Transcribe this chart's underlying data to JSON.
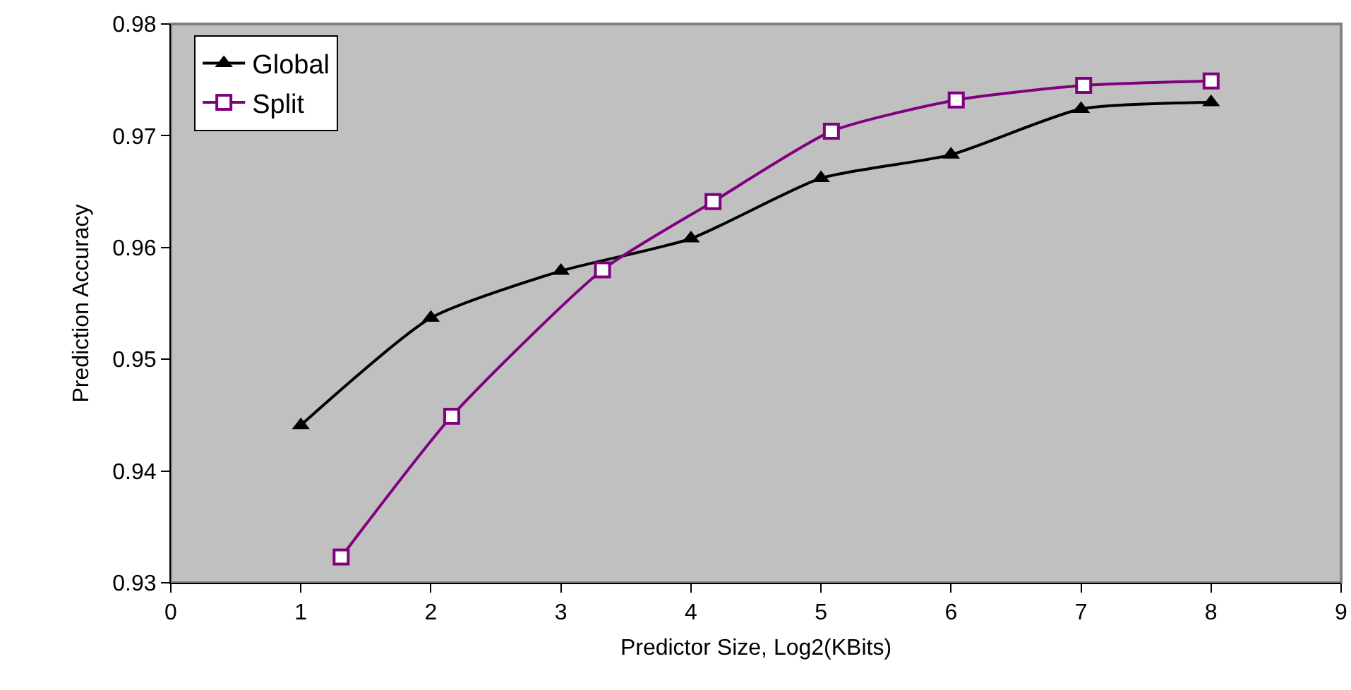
{
  "chart_data": {
    "type": "line",
    "xlabel": "Predictor Size, Log2(KBits)",
    "ylabel": "Prediction Accuracy",
    "xlim": [
      0,
      9
    ],
    "xticks": [
      0,
      1,
      2,
      3,
      4,
      5,
      6,
      7,
      8,
      9
    ],
    "ylim": [
      0.93,
      0.98
    ],
    "yticks": [
      0.93,
      0.94,
      0.95,
      0.96,
      0.97,
      0.98
    ],
    "grid": false,
    "legend": "top left",
    "line_style": "solid",
    "series": [
      {
        "name": "Global",
        "color": "#000000",
        "marker": "triangle",
        "x": [
          1,
          2,
          3,
          4,
          5,
          6,
          7,
          8
        ],
        "values": [
          0.9441,
          0.9537,
          0.9579,
          0.9608,
          0.9662,
          0.9683,
          0.9724,
          0.973
        ]
      },
      {
        "name": "Split",
        "color": "#800080",
        "marker": "square",
        "x": [
          1.31,
          2.16,
          3.32,
          4.17,
          5.08,
          6.04,
          7.02,
          8.0
        ],
        "values": [
          0.9323,
          0.9449,
          0.958,
          0.9641,
          0.9704,
          0.9732,
          0.9745,
          0.9749
        ]
      }
    ]
  }
}
